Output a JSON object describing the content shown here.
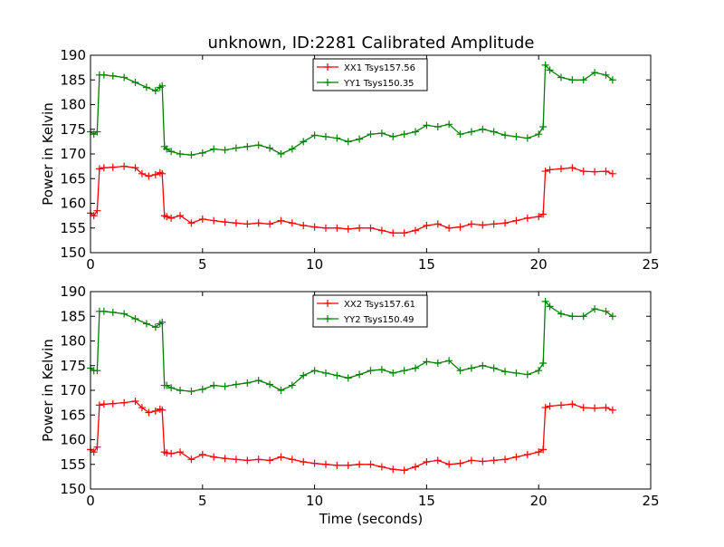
{
  "figure": {
    "title": "unknown, ID:2281 Calibrated Amplitude",
    "xlabel": "Time (seconds)",
    "background": "#ffffff"
  },
  "chart_data": [
    {
      "type": "line",
      "title": "unknown, ID:2281 Calibrated Amplitude",
      "xlabel": "",
      "ylabel": "Power in Kelvin",
      "xlim": [
        0,
        25
      ],
      "ylim": [
        150,
        190
      ],
      "x_ticks": [
        0,
        5,
        10,
        15,
        20,
        25
      ],
      "y_ticks": [
        150,
        155,
        160,
        165,
        170,
        175,
        180,
        185,
        190
      ],
      "x_tick_labels": [
        "0",
        "5",
        "10",
        "15",
        "20",
        "25"
      ],
      "y_tick_labels": [
        "150",
        "155",
        "160",
        "165",
        "170",
        "175",
        "180",
        "185",
        "190"
      ],
      "grid": false,
      "legend": "upper center",
      "marker": "+",
      "series": [
        {
          "name": "XX1 Tsys157.56",
          "color": "#ff0000",
          "x": [
            0.0,
            0.15,
            0.3,
            0.4,
            0.6,
            1.0,
            1.5,
            2.0,
            2.3,
            2.6,
            2.9,
            3.1,
            3.2,
            3.3,
            3.4,
            3.6,
            4.0,
            4.5,
            5.0,
            5.5,
            6.0,
            6.5,
            7.0,
            7.5,
            8.0,
            8.5,
            9.0,
            9.5,
            10.0,
            10.5,
            11.0,
            11.5,
            12.0,
            12.5,
            13.0,
            13.5,
            14.0,
            14.5,
            15.0,
            15.5,
            16.0,
            16.5,
            17.0,
            17.5,
            18.0,
            18.5,
            19.0,
            19.5,
            20.0,
            20.2,
            20.3,
            20.5,
            21.0,
            21.5,
            22.0,
            22.5,
            23.0,
            23.3
          ],
          "y": [
            158.0,
            157.5,
            158.5,
            167.0,
            167.2,
            167.3,
            167.5,
            167.2,
            166.0,
            165.5,
            165.8,
            166.2,
            166.0,
            157.5,
            157.3,
            157.0,
            157.5,
            156.0,
            156.8,
            156.5,
            156.2,
            156.0,
            155.8,
            156.0,
            155.8,
            156.5,
            156.0,
            155.5,
            155.2,
            155.0,
            155.0,
            154.8,
            155.0,
            155.0,
            154.5,
            154.0,
            154.0,
            154.5,
            155.5,
            155.8,
            155.0,
            155.2,
            155.8,
            155.6,
            155.8,
            156.0,
            156.5,
            157.0,
            157.3,
            157.8,
            166.5,
            166.8,
            167.0,
            167.2,
            166.5,
            166.4,
            166.5,
            166.0
          ]
        },
        {
          "name": "YY1 Tsys150.35",
          "color": "#008000",
          "x": [
            0.0,
            0.15,
            0.3,
            0.4,
            0.6,
            1.0,
            1.5,
            2.0,
            2.5,
            2.9,
            3.1,
            3.2,
            3.3,
            3.4,
            3.6,
            4.0,
            4.5,
            5.0,
            5.5,
            6.0,
            6.5,
            7.0,
            7.5,
            8.0,
            8.5,
            9.0,
            9.5,
            10.0,
            10.5,
            11.0,
            11.5,
            12.0,
            12.5,
            13.0,
            13.5,
            14.0,
            14.5,
            15.0,
            15.5,
            16.0,
            16.5,
            17.0,
            17.5,
            18.0,
            18.5,
            19.0,
            19.5,
            20.0,
            20.2,
            20.3,
            20.5,
            21.0,
            21.5,
            22.0,
            22.5,
            23.0,
            23.3
          ],
          "y": [
            174.5,
            174.0,
            174.5,
            186.0,
            186.0,
            185.8,
            185.5,
            184.5,
            183.5,
            182.8,
            183.5,
            183.8,
            171.5,
            171.0,
            170.5,
            170.0,
            169.8,
            170.2,
            171.0,
            170.8,
            171.2,
            171.5,
            171.8,
            171.2,
            170.0,
            171.0,
            172.5,
            173.8,
            173.5,
            173.2,
            172.5,
            173.0,
            174.0,
            174.2,
            173.5,
            174.0,
            174.5,
            175.8,
            175.5,
            176.0,
            174.0,
            174.5,
            175.0,
            174.5,
            173.8,
            173.5,
            173.2,
            174.0,
            175.5,
            188.0,
            187.0,
            185.5,
            185.0,
            185.0,
            186.5,
            186.0,
            185.0
          ]
        }
      ]
    },
    {
      "type": "line",
      "title": "",
      "xlabel": "Time (seconds)",
      "ylabel": "Power in Kelvin",
      "xlim": [
        0,
        25
      ],
      "ylim": [
        150,
        190
      ],
      "x_ticks": [
        0,
        5,
        10,
        15,
        20,
        25
      ],
      "y_ticks": [
        150,
        155,
        160,
        165,
        170,
        175,
        180,
        185,
        190
      ],
      "x_tick_labels": [
        "0",
        "5",
        "10",
        "15",
        "20",
        "25"
      ],
      "y_tick_labels": [
        "150",
        "155",
        "160",
        "165",
        "170",
        "175",
        "180",
        "185",
        "190"
      ],
      "grid": false,
      "legend": "upper center",
      "marker": "+",
      "series": [
        {
          "name": "XX2 Tsys157.61",
          "color": "#ff0000",
          "x": [
            0.0,
            0.15,
            0.3,
            0.4,
            0.6,
            1.0,
            1.5,
            2.0,
            2.3,
            2.6,
            2.9,
            3.1,
            3.2,
            3.3,
            3.4,
            3.6,
            4.0,
            4.5,
            5.0,
            5.5,
            6.0,
            6.5,
            7.0,
            7.5,
            8.0,
            8.5,
            9.0,
            9.5,
            10.0,
            10.5,
            11.0,
            11.5,
            12.0,
            12.5,
            13.0,
            13.5,
            14.0,
            14.5,
            15.0,
            15.5,
            16.0,
            16.5,
            17.0,
            17.5,
            18.0,
            18.5,
            19.0,
            19.5,
            20.0,
            20.2,
            20.3,
            20.5,
            21.0,
            21.5,
            22.0,
            22.5,
            23.0,
            23.3
          ],
          "y": [
            158.0,
            157.5,
            158.5,
            167.0,
            167.2,
            167.3,
            167.5,
            167.8,
            166.5,
            165.5,
            165.8,
            166.2,
            166.0,
            157.5,
            157.3,
            157.2,
            157.5,
            156.0,
            157.0,
            156.5,
            156.2,
            156.0,
            155.8,
            156.0,
            155.8,
            156.5,
            156.0,
            155.5,
            155.2,
            155.0,
            154.8,
            154.8,
            155.0,
            155.0,
            154.5,
            154.0,
            153.8,
            154.5,
            155.5,
            155.8,
            155.0,
            155.2,
            155.8,
            155.6,
            155.8,
            156.0,
            156.5,
            157.0,
            157.5,
            158.0,
            166.5,
            166.8,
            167.0,
            167.2,
            166.5,
            166.4,
            166.5,
            166.0
          ]
        },
        {
          "name": "YY2 Tsys150.49",
          "color": "#008000",
          "x": [
            0.0,
            0.15,
            0.3,
            0.4,
            0.6,
            1.0,
            1.5,
            2.0,
            2.5,
            2.9,
            3.1,
            3.2,
            3.3,
            3.4,
            3.6,
            4.0,
            4.5,
            5.0,
            5.5,
            6.0,
            6.5,
            7.0,
            7.5,
            8.0,
            8.5,
            9.0,
            9.5,
            10.0,
            10.5,
            11.0,
            11.5,
            12.0,
            12.5,
            13.0,
            13.5,
            14.0,
            14.5,
            15.0,
            15.5,
            16.0,
            16.5,
            17.0,
            17.5,
            18.0,
            18.5,
            19.0,
            19.5,
            20.0,
            20.2,
            20.3,
            20.5,
            21.0,
            21.5,
            22.0,
            22.5,
            23.0,
            23.3
          ],
          "y": [
            174.5,
            174.0,
            174.0,
            186.0,
            186.0,
            185.8,
            185.5,
            184.5,
            183.5,
            182.8,
            183.5,
            183.8,
            171.0,
            171.0,
            170.5,
            170.0,
            169.8,
            170.2,
            171.0,
            170.8,
            171.2,
            171.5,
            172.0,
            171.2,
            170.0,
            171.0,
            173.0,
            174.0,
            173.5,
            173.0,
            172.5,
            173.2,
            174.0,
            174.2,
            173.5,
            174.0,
            174.5,
            175.8,
            175.5,
            176.0,
            174.0,
            174.5,
            175.0,
            174.5,
            173.8,
            173.5,
            173.2,
            174.0,
            175.5,
            188.0,
            187.0,
            185.5,
            185.0,
            185.0,
            186.5,
            186.0,
            185.0
          ]
        }
      ]
    }
  ]
}
